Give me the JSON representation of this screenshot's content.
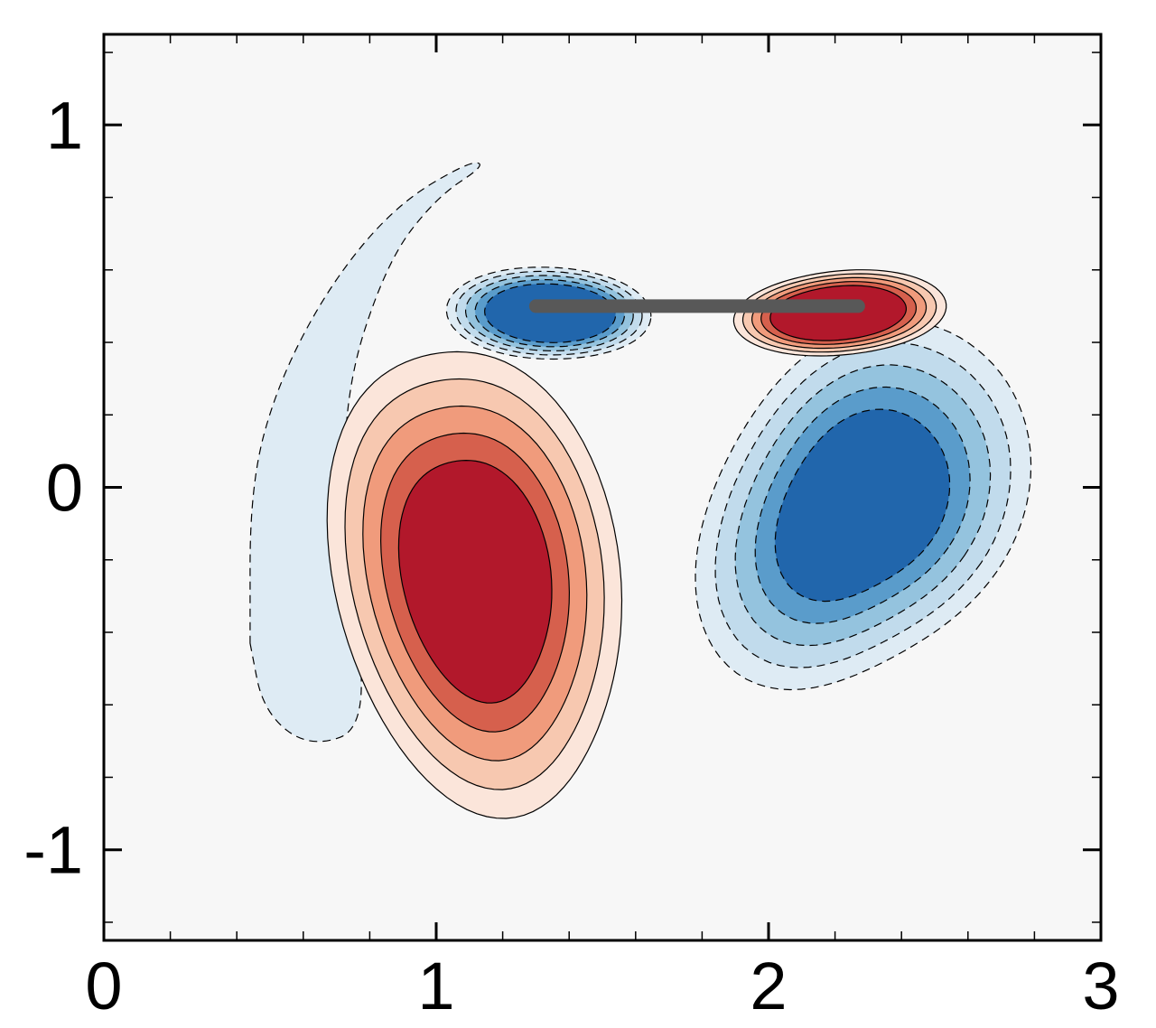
{
  "chart_data": {
    "type": "contour",
    "title": "",
    "xlabel": "",
    "ylabel": "",
    "xlim": [
      0,
      3
    ],
    "ylim": [
      -1.25,
      1.25
    ],
    "x_ticks": [
      0,
      1,
      2,
      3
    ],
    "x_tick_labels": [
      "0",
      "1",
      "2",
      "3"
    ],
    "y_ticks": [
      -1,
      0,
      1
    ],
    "y_tick_labels": [
      "-1",
      "0",
      "1"
    ],
    "x_minor_step": 0.2,
    "y_minor_step": 0.2,
    "grid": false,
    "legend": "none",
    "colors": {
      "background_level": "#f7f7f7",
      "positive_levels": [
        "#fbe5da",
        "#f7c8b0",
        "#f09b7c",
        "#d6604d",
        "#b2182b"
      ],
      "negative_levels": [
        "#deebf4",
        "#c1dbec",
        "#94c3de",
        "#5a9ccb",
        "#2166ac"
      ],
      "plate": "#585858"
    },
    "plate": {
      "x": [
        1.3,
        2.27
      ],
      "y": 0.5
    },
    "vortices": [
      {
        "name": "primary-positive",
        "sign": "positive",
        "center": [
          1.12,
          -0.25
        ],
        "extent_x": [
          0.8,
          1.66
        ],
        "extent_y": [
          -0.91,
          0.49
        ]
      },
      {
        "name": "primary-negative",
        "sign": "negative",
        "center": [
          2.28,
          -0.05
        ],
        "extent_x": [
          1.78,
          2.72
        ],
        "extent_y": [
          -0.61,
          0.62
        ]
      },
      {
        "name": "plate-negative",
        "sign": "negative",
        "center": [
          1.35,
          0.48
        ],
        "extent_x": [
          1.1,
          1.74
        ],
        "extent_y": [
          0.32,
          0.61
        ]
      },
      {
        "name": "plate-positive",
        "sign": "positive",
        "center": [
          2.2,
          0.48
        ],
        "extent_x": [
          1.8,
          2.42
        ],
        "extent_y": [
          0.34,
          0.61
        ]
      },
      {
        "name": "outer-negative-arc",
        "sign": "negative",
        "center": [
          0.55,
          0.0
        ],
        "extent_x": [
          0.44,
          1.15
        ],
        "extent_y": [
          -0.7,
          0.89
        ]
      }
    ]
  }
}
